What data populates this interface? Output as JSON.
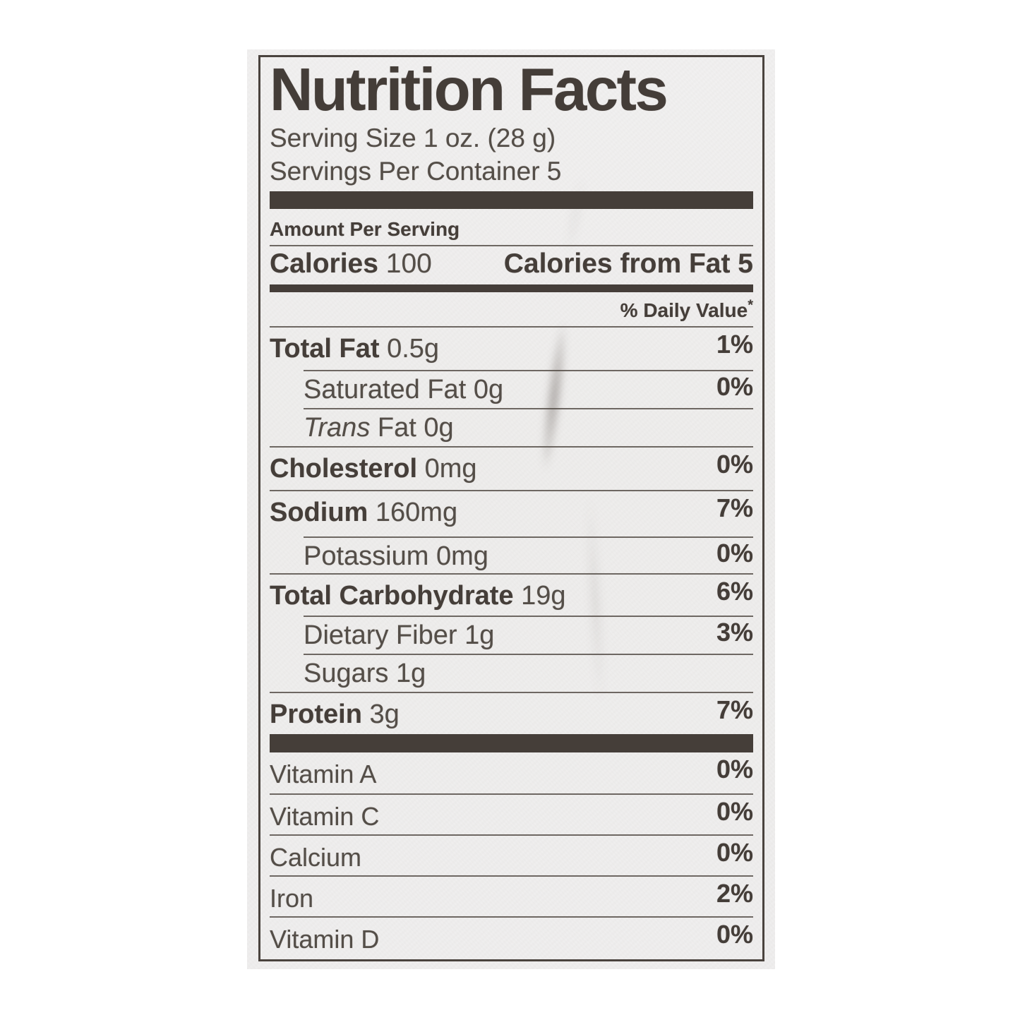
{
  "label": {
    "title": "Nutrition Facts",
    "serving_size": "Serving Size 1 oz. (28 g)",
    "servings_per_container": "Servings Per Container 5",
    "amount_per_serving": "Amount Per Serving",
    "calories_label": "Calories",
    "calories_value": "100",
    "calories_from_fat": "Calories from Fat 5",
    "daily_value_header": "% Daily Value",
    "daily_value_asterisk": "*",
    "nutrients": [
      {
        "name": "Total Fat",
        "amount": "0.5g",
        "dv": "1%",
        "style": "main",
        "h": "62"
      },
      {
        "name": "Saturated Fat",
        "amount": "0g",
        "dv": "0%",
        "style": "sub",
        "h": "54"
      },
      {
        "name_italic": "Trans",
        "name": " Fat",
        "amount": "0g",
        "dv": "",
        "style": "sub",
        "h": "54"
      },
      {
        "name": "Cholesterol",
        "amount": "0mg",
        "dv": "0%",
        "style": "main",
        "h": "62"
      },
      {
        "name": "Sodium",
        "amount": "160mg",
        "dv": "7%",
        "style": "main",
        "h": "66"
      },
      {
        "name": "Potassium",
        "amount": "0mg",
        "dv": "0%",
        "style": "sub",
        "h": "52"
      },
      {
        "name": "Total Carbohydrate",
        "amount": "19g",
        "dv": "6%",
        "style": "main",
        "h": "60"
      },
      {
        "name": "Dietary Fiber",
        "amount": "1g",
        "dv": "3%",
        "style": "sub",
        "h": "54"
      },
      {
        "name": "Sugars",
        "amount": "1g",
        "dv": "",
        "style": "sub",
        "h": "54"
      },
      {
        "name": "Protein",
        "amount": "3g",
        "dv": "7%",
        "style": "main",
        "h": "58"
      }
    ],
    "micronutrients": [
      {
        "name": "Vitamin A",
        "dv": "0%"
      },
      {
        "name": "Vitamin C",
        "dv": "0%"
      },
      {
        "name": "Calcium",
        "dv": "0%"
      },
      {
        "name": "Iron",
        "dv": "2%"
      },
      {
        "name": "Vitamin D",
        "dv": "0%"
      }
    ],
    "colors": {
      "ink": "#453e39",
      "paper": "#efeeee",
      "background": "#ffffff"
    }
  }
}
